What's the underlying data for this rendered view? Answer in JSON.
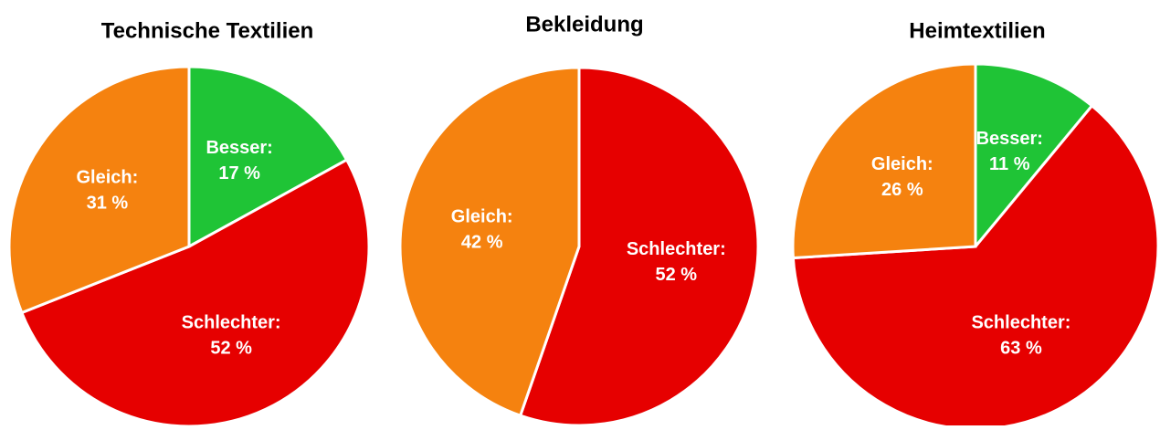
{
  "chart_data": [
    {
      "type": "pie",
      "title": "Technische Textilien",
      "categories": [
        "Besser:",
        "Schlechter:",
        "Gleich:"
      ],
      "values": [
        17,
        52,
        31
      ],
      "value_labels": [
        "17 %",
        "52 %",
        "31 %"
      ],
      "colors": [
        "#1fc436",
        "#e60000",
        "#f5820f"
      ]
    },
    {
      "type": "pie",
      "title": "Bekleidung",
      "categories": [
        "Schlechter:",
        "Gleich:"
      ],
      "values": [
        52,
        42
      ],
      "value_labels": [
        "52 %",
        "42 %"
      ],
      "colors": [
        "#e60000",
        "#f5820f"
      ]
    },
    {
      "type": "pie",
      "title": "Heimtextilien",
      "categories": [
        "Besser:",
        "Schlechter:",
        "Gleich:"
      ],
      "values": [
        11,
        63,
        26
      ],
      "value_labels": [
        "11 %",
        "63 %",
        "26 %"
      ],
      "colors": [
        "#1fc436",
        "#e60000",
        "#f5820f"
      ]
    }
  ]
}
